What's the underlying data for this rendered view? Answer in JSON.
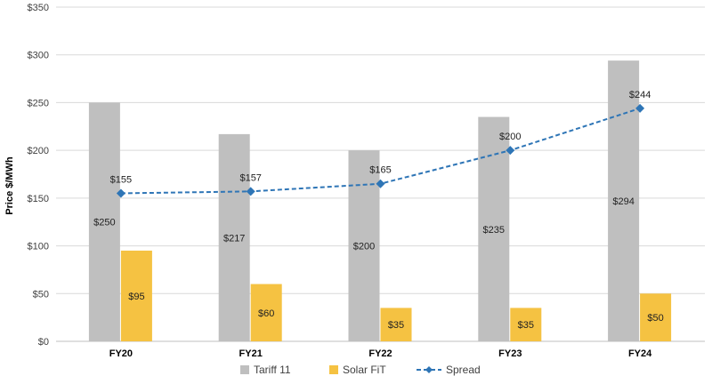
{
  "chart_data": {
    "type": "bar",
    "categories": [
      "FY20",
      "FY21",
      "FY22",
      "FY23",
      "FY24"
    ],
    "ylabel": "Price $/MWh",
    "ylim": [
      0,
      350
    ],
    "yticks": [
      0,
      50,
      100,
      150,
      200,
      250,
      300,
      350
    ],
    "ytick_labels": [
      "$0",
      "$50",
      "$100",
      "$150",
      "$200",
      "$250",
      "$300",
      "$350"
    ],
    "grid": true,
    "legend_position": "bottom",
    "series": [
      {
        "name": "Tariff 11",
        "kind": "bar",
        "color": "#bfbfbf",
        "values": [
          250,
          217,
          200,
          235,
          294
        ],
        "labels": [
          "$250",
          "$217",
          "$200",
          "$235",
          "$294"
        ]
      },
      {
        "name": "Solar FiT",
        "kind": "bar",
        "color": "#f5c242",
        "values": [
          95,
          60,
          35,
          35,
          50
        ],
        "labels": [
          "$95",
          "$60",
          "$35",
          "$35",
          "$50"
        ]
      },
      {
        "name": "Spread",
        "kind": "line",
        "color": "#2e75b6",
        "line_style": "dashed",
        "marker": "diamond",
        "values": [
          155,
          157,
          165,
          200,
          244
        ],
        "labels": [
          "$155",
          "$157",
          "$165",
          "$200",
          "$244"
        ]
      }
    ]
  }
}
